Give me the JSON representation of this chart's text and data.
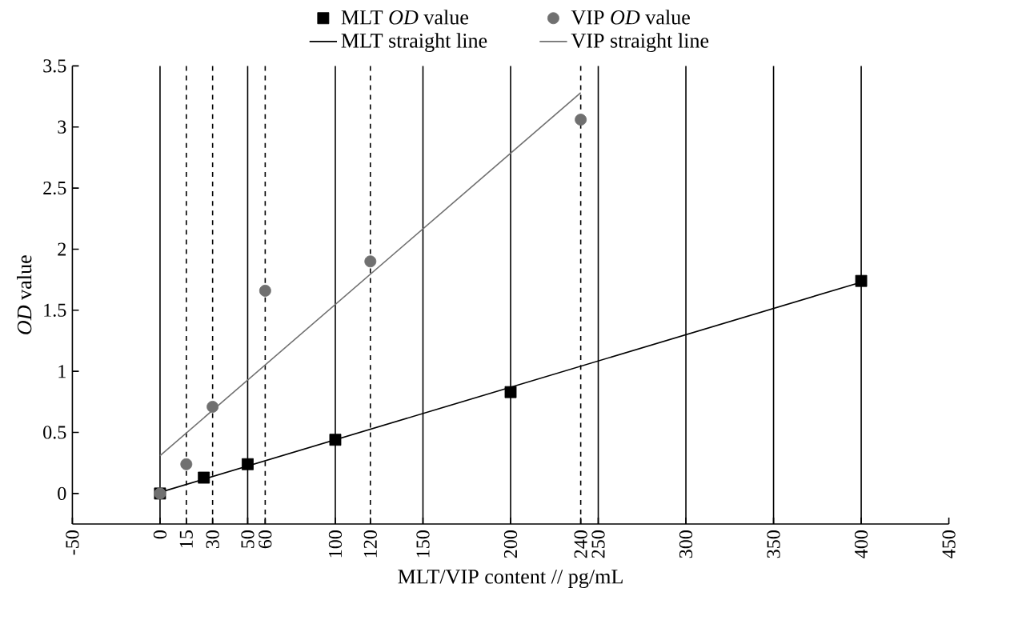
{
  "chart_data": {
    "type": "scatter",
    "xlabel": "MLT/VIP content // pg/mL",
    "ylabel": "*OD* value",
    "xlim": [
      -50,
      450
    ],
    "ylim": [
      -0.25,
      3.5
    ],
    "xticks": [
      -50,
      0,
      15,
      30,
      50,
      60,
      100,
      120,
      150,
      200,
      240,
      250,
      300,
      350,
      400,
      450
    ],
    "yticks": [
      0,
      0.5,
      1,
      1.5,
      2,
      2.5,
      3,
      3.5
    ],
    "legend": "top",
    "grid": false,
    "series": [
      {
        "name": "MLT *OD* value",
        "marker": "square",
        "color": "#000000",
        "x": [
          0,
          25,
          50,
          100,
          200,
          400
        ],
        "values": [
          0,
          0.13,
          0.24,
          0.44,
          0.83,
          1.74
        ]
      },
      {
        "name": "VIP *OD* value",
        "marker": "circle",
        "color": "#707070",
        "x": [
          0,
          15,
          30,
          60,
          120,
          240
        ],
        "values": [
          0,
          0.24,
          0.71,
          1.66,
          1.9,
          3.06
        ]
      },
      {
        "name": "MLT straight line",
        "type": "line",
        "marker": "none",
        "color": "#000000",
        "x": [
          0,
          400
        ],
        "values": [
          0.01,
          1.73
        ]
      },
      {
        "name": "VIP straight line",
        "type": "line",
        "marker": "none",
        "color": "#707070",
        "x": [
          0,
          240
        ],
        "values": [
          0.31,
          3.28
        ]
      }
    ],
    "ref_lines": [
      {
        "axis": "x",
        "value": 0,
        "line_style": "solid",
        "color": "#000000"
      },
      {
        "axis": "x",
        "value": 50,
        "line_style": "solid",
        "color": "#000000"
      },
      {
        "axis": "x",
        "value": 100,
        "line_style": "solid",
        "color": "#000000"
      },
      {
        "axis": "x",
        "value": 150,
        "line_style": "solid",
        "color": "#000000"
      },
      {
        "axis": "x",
        "value": 200,
        "line_style": "solid",
        "color": "#000000"
      },
      {
        "axis": "x",
        "value": 250,
        "line_style": "solid",
        "color": "#000000"
      },
      {
        "axis": "x",
        "value": 300,
        "line_style": "solid",
        "color": "#000000"
      },
      {
        "axis": "x",
        "value": 350,
        "line_style": "solid",
        "color": "#000000"
      },
      {
        "axis": "x",
        "value": 400,
        "line_style": "solid",
        "color": "#000000"
      },
      {
        "axis": "x",
        "value": 15,
        "line_style": "dashed",
        "color": "#000000"
      },
      {
        "axis": "x",
        "value": 30,
        "line_style": "dashed",
        "color": "#000000"
      },
      {
        "axis": "x",
        "value": 60,
        "line_style": "dashed",
        "color": "#000000"
      },
      {
        "axis": "x",
        "value": 120,
        "line_style": "dashed",
        "color": "#000000"
      },
      {
        "axis": "x",
        "value": 240,
        "line_style": "dashed",
        "color": "#000000"
      }
    ]
  }
}
